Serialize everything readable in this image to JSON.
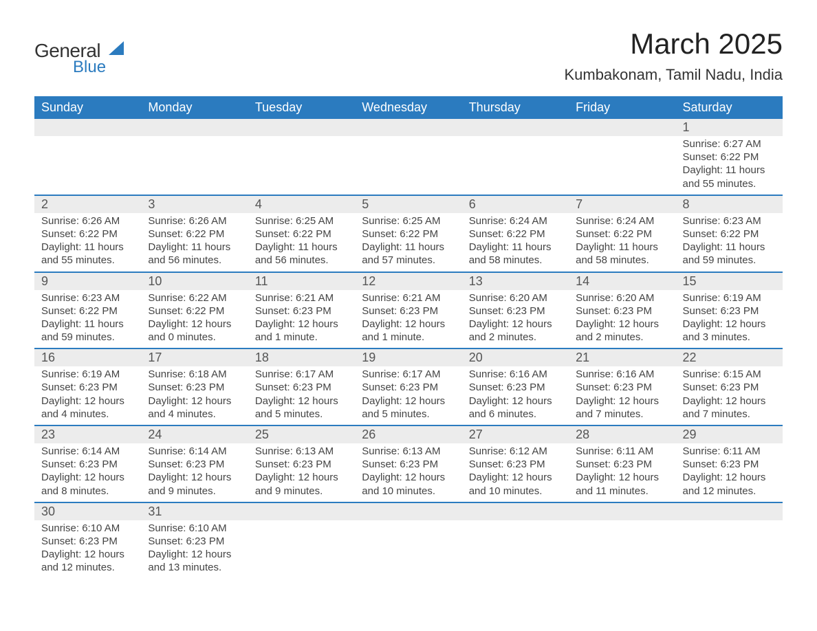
{
  "logo": {
    "general": "General",
    "blue": "Blue",
    "shape_color": "#2b7bbf"
  },
  "title": {
    "month": "March 2025",
    "location": "Kumbakonam, Tamil Nadu, India"
  },
  "style": {
    "header_bg": "#2b7bbf",
    "header_fg": "#ffffff",
    "daynum_bg": "#ececec",
    "row_divider": "#2b7bbf",
    "body_text": "#444444",
    "title_fontsize": 42,
    "location_fontsize": 22,
    "th_fontsize": 18,
    "cell_fontsize": 15
  },
  "weekdays": [
    "Sunday",
    "Monday",
    "Tuesday",
    "Wednesday",
    "Thursday",
    "Friday",
    "Saturday"
  ],
  "weeks": [
    [
      null,
      null,
      null,
      null,
      null,
      null,
      {
        "day": "1",
        "sunrise": "Sunrise: 6:27 AM",
        "sunset": "Sunset: 6:22 PM",
        "daylight": "Daylight: 11 hours and 55 minutes."
      }
    ],
    [
      {
        "day": "2",
        "sunrise": "Sunrise: 6:26 AM",
        "sunset": "Sunset: 6:22 PM",
        "daylight": "Daylight: 11 hours and 55 minutes."
      },
      {
        "day": "3",
        "sunrise": "Sunrise: 6:26 AM",
        "sunset": "Sunset: 6:22 PM",
        "daylight": "Daylight: 11 hours and 56 minutes."
      },
      {
        "day": "4",
        "sunrise": "Sunrise: 6:25 AM",
        "sunset": "Sunset: 6:22 PM",
        "daylight": "Daylight: 11 hours and 56 minutes."
      },
      {
        "day": "5",
        "sunrise": "Sunrise: 6:25 AM",
        "sunset": "Sunset: 6:22 PM",
        "daylight": "Daylight: 11 hours and 57 minutes."
      },
      {
        "day": "6",
        "sunrise": "Sunrise: 6:24 AM",
        "sunset": "Sunset: 6:22 PM",
        "daylight": "Daylight: 11 hours and 58 minutes."
      },
      {
        "day": "7",
        "sunrise": "Sunrise: 6:24 AM",
        "sunset": "Sunset: 6:22 PM",
        "daylight": "Daylight: 11 hours and 58 minutes."
      },
      {
        "day": "8",
        "sunrise": "Sunrise: 6:23 AM",
        "sunset": "Sunset: 6:22 PM",
        "daylight": "Daylight: 11 hours and 59 minutes."
      }
    ],
    [
      {
        "day": "9",
        "sunrise": "Sunrise: 6:23 AM",
        "sunset": "Sunset: 6:22 PM",
        "daylight": "Daylight: 11 hours and 59 minutes."
      },
      {
        "day": "10",
        "sunrise": "Sunrise: 6:22 AM",
        "sunset": "Sunset: 6:22 PM",
        "daylight": "Daylight: 12 hours and 0 minutes."
      },
      {
        "day": "11",
        "sunrise": "Sunrise: 6:21 AM",
        "sunset": "Sunset: 6:23 PM",
        "daylight": "Daylight: 12 hours and 1 minute."
      },
      {
        "day": "12",
        "sunrise": "Sunrise: 6:21 AM",
        "sunset": "Sunset: 6:23 PM",
        "daylight": "Daylight: 12 hours and 1 minute."
      },
      {
        "day": "13",
        "sunrise": "Sunrise: 6:20 AM",
        "sunset": "Sunset: 6:23 PM",
        "daylight": "Daylight: 12 hours and 2 minutes."
      },
      {
        "day": "14",
        "sunrise": "Sunrise: 6:20 AM",
        "sunset": "Sunset: 6:23 PM",
        "daylight": "Daylight: 12 hours and 2 minutes."
      },
      {
        "day": "15",
        "sunrise": "Sunrise: 6:19 AM",
        "sunset": "Sunset: 6:23 PM",
        "daylight": "Daylight: 12 hours and 3 minutes."
      }
    ],
    [
      {
        "day": "16",
        "sunrise": "Sunrise: 6:19 AM",
        "sunset": "Sunset: 6:23 PM",
        "daylight": "Daylight: 12 hours and 4 minutes."
      },
      {
        "day": "17",
        "sunrise": "Sunrise: 6:18 AM",
        "sunset": "Sunset: 6:23 PM",
        "daylight": "Daylight: 12 hours and 4 minutes."
      },
      {
        "day": "18",
        "sunrise": "Sunrise: 6:17 AM",
        "sunset": "Sunset: 6:23 PM",
        "daylight": "Daylight: 12 hours and 5 minutes."
      },
      {
        "day": "19",
        "sunrise": "Sunrise: 6:17 AM",
        "sunset": "Sunset: 6:23 PM",
        "daylight": "Daylight: 12 hours and 5 minutes."
      },
      {
        "day": "20",
        "sunrise": "Sunrise: 6:16 AM",
        "sunset": "Sunset: 6:23 PM",
        "daylight": "Daylight: 12 hours and 6 minutes."
      },
      {
        "day": "21",
        "sunrise": "Sunrise: 6:16 AM",
        "sunset": "Sunset: 6:23 PM",
        "daylight": "Daylight: 12 hours and 7 minutes."
      },
      {
        "day": "22",
        "sunrise": "Sunrise: 6:15 AM",
        "sunset": "Sunset: 6:23 PM",
        "daylight": "Daylight: 12 hours and 7 minutes."
      }
    ],
    [
      {
        "day": "23",
        "sunrise": "Sunrise: 6:14 AM",
        "sunset": "Sunset: 6:23 PM",
        "daylight": "Daylight: 12 hours and 8 minutes."
      },
      {
        "day": "24",
        "sunrise": "Sunrise: 6:14 AM",
        "sunset": "Sunset: 6:23 PM",
        "daylight": "Daylight: 12 hours and 9 minutes."
      },
      {
        "day": "25",
        "sunrise": "Sunrise: 6:13 AM",
        "sunset": "Sunset: 6:23 PM",
        "daylight": "Daylight: 12 hours and 9 minutes."
      },
      {
        "day": "26",
        "sunrise": "Sunrise: 6:13 AM",
        "sunset": "Sunset: 6:23 PM",
        "daylight": "Daylight: 12 hours and 10 minutes."
      },
      {
        "day": "27",
        "sunrise": "Sunrise: 6:12 AM",
        "sunset": "Sunset: 6:23 PM",
        "daylight": "Daylight: 12 hours and 10 minutes."
      },
      {
        "day": "28",
        "sunrise": "Sunrise: 6:11 AM",
        "sunset": "Sunset: 6:23 PM",
        "daylight": "Daylight: 12 hours and 11 minutes."
      },
      {
        "day": "29",
        "sunrise": "Sunrise: 6:11 AM",
        "sunset": "Sunset: 6:23 PM",
        "daylight": "Daylight: 12 hours and 12 minutes."
      }
    ],
    [
      {
        "day": "30",
        "sunrise": "Sunrise: 6:10 AM",
        "sunset": "Sunset: 6:23 PM",
        "daylight": "Daylight: 12 hours and 12 minutes."
      },
      {
        "day": "31",
        "sunrise": "Sunrise: 6:10 AM",
        "sunset": "Sunset: 6:23 PM",
        "daylight": "Daylight: 12 hours and 13 minutes."
      },
      null,
      null,
      null,
      null,
      null
    ]
  ]
}
